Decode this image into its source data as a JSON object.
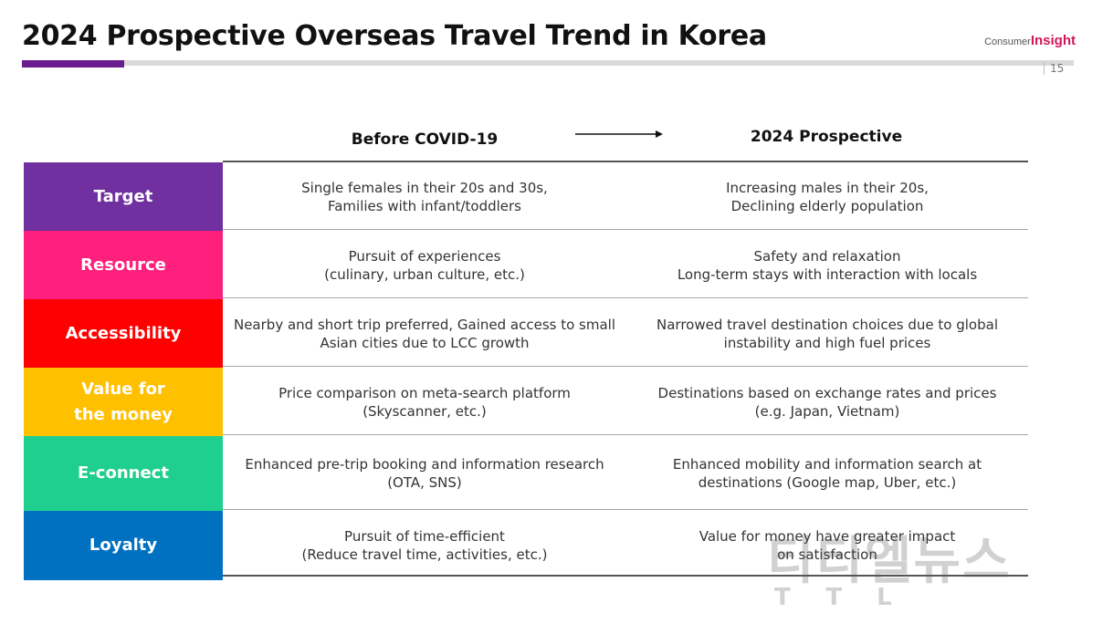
{
  "header": {
    "title": "2024 Prospective Overseas Travel Trend in Korea",
    "logo_prefix": "Consumer",
    "logo_brand": "Insight",
    "page_number": "15"
  },
  "columns": {
    "before": "Before COVID-19",
    "after": "2024 Prospective"
  },
  "rows": [
    {
      "label": "Target",
      "color": "#7030a0",
      "before": "Single females in their 20s and 30s,\nFamilies with infant/toddlers",
      "after": "Increasing males in their 20s,\nDeclining elderly population"
    },
    {
      "label": "Resource",
      "color": "#ff1f7d",
      "before": "Pursuit of experiences\n(culinary, urban culture, etc.)",
      "after": "Safety and relaxation\nLong-term stays with interaction with locals"
    },
    {
      "label": "Accessibility",
      "color": "#ff0000",
      "before": "Nearby and short trip preferred, Gained access to small\nAsian cities due to LCC growth",
      "after": "Narrowed travel destination choices due to global\ninstability and high fuel prices"
    },
    {
      "label": "Value for\nthe money",
      "color": "#ffc000",
      "before": "Price comparison on meta-search platform\n(Skyscanner, etc.)",
      "after": "Destinations based on exchange rates and prices\n(e.g. Japan, Vietnam)"
    },
    {
      "label": "E-connect",
      "color": "#1ecf8f",
      "before": "Enhanced pre-trip booking and information research\n(OTA, SNS)",
      "after": "Enhanced mobility and information search at\ndestinations (Google map, Uber, etc.)"
    },
    {
      "label": "Loyalty",
      "color": "#0070c0",
      "before": "Pursuit of time-efficient\n(Reduce travel time, activities, etc.)",
      "after": "Value for money have greater impact\non satisfaction"
    }
  ],
  "watermark": {
    "main": "티티엘뉴스",
    "sub": "TTL"
  }
}
